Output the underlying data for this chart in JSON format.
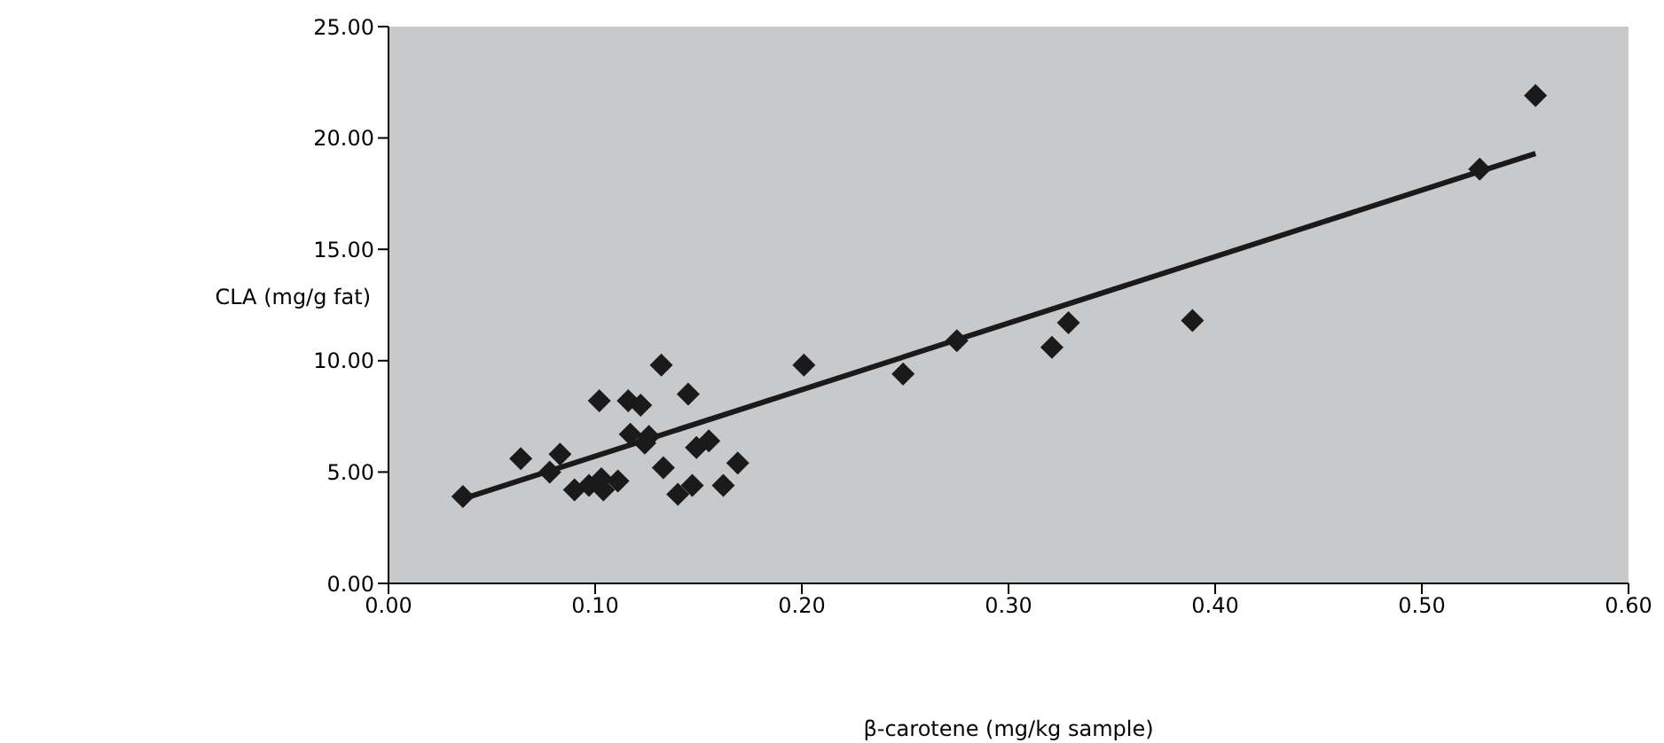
{
  "chart_data": {
    "type": "scatter",
    "xlabel": "β-carotene (mg/kg sample)",
    "ylabel": "CLA (mg/g fat)",
    "xlim": [
      0,
      0.6
    ],
    "xticks": [
      {
        "value": 0,
        "label": "0.00"
      },
      {
        "value": 0.1,
        "label": "0.10"
      },
      {
        "value": 0.2,
        "label": "0.20"
      },
      {
        "value": 0.3,
        "label": "0.30"
      },
      {
        "value": 0.4,
        "label": "0.40"
      },
      {
        "value": 0.5,
        "label": "0.50"
      },
      {
        "value": 0.6,
        "label": "0.60"
      }
    ],
    "ylim": [
      0,
      25
    ],
    "yticks": [
      {
        "value": 0,
        "label": "0.00"
      },
      {
        "value": 5,
        "label": "5.00"
      },
      {
        "value": 10,
        "label": "10.00"
      },
      {
        "value": 15,
        "label": "15.00"
      },
      {
        "value": 20,
        "label": "20.00"
      },
      {
        "value": 25,
        "label": "25.00"
      }
    ],
    "series": [
      {
        "marker": "diamond",
        "color": "#1a1a1a",
        "x": [
          0.036,
          0.064,
          0.083,
          0.078,
          0.09,
          0.097,
          0.103,
          0.104,
          0.111,
          0.102,
          0.116,
          0.122,
          0.132,
          0.145,
          0.117,
          0.126,
          0.124,
          0.133,
          0.14,
          0.147,
          0.149,
          0.155,
          0.162,
          0.169,
          0.201,
          0.249,
          0.275,
          0.321,
          0.329,
          0.389,
          0.528,
          0.555
        ],
        "values": [
          3.9,
          5.6,
          5.8,
          5.0,
          4.2,
          4.4,
          4.7,
          4.2,
          4.6,
          8.2,
          8.2,
          8.0,
          9.8,
          8.5,
          6.7,
          6.6,
          6.3,
          5.2,
          4.0,
          4.4,
          6.1,
          6.4,
          4.4,
          5.4,
          9.8,
          9.4,
          10.9,
          10.6,
          11.7,
          11.8,
          18.6,
          21.9
        ]
      },
      {
        "type": "line",
        "color": "#1a1a1a",
        "x": [
          0.036,
          0.555
        ],
        "values": [
          3.8,
          19.3
        ]
      }
    ]
  }
}
